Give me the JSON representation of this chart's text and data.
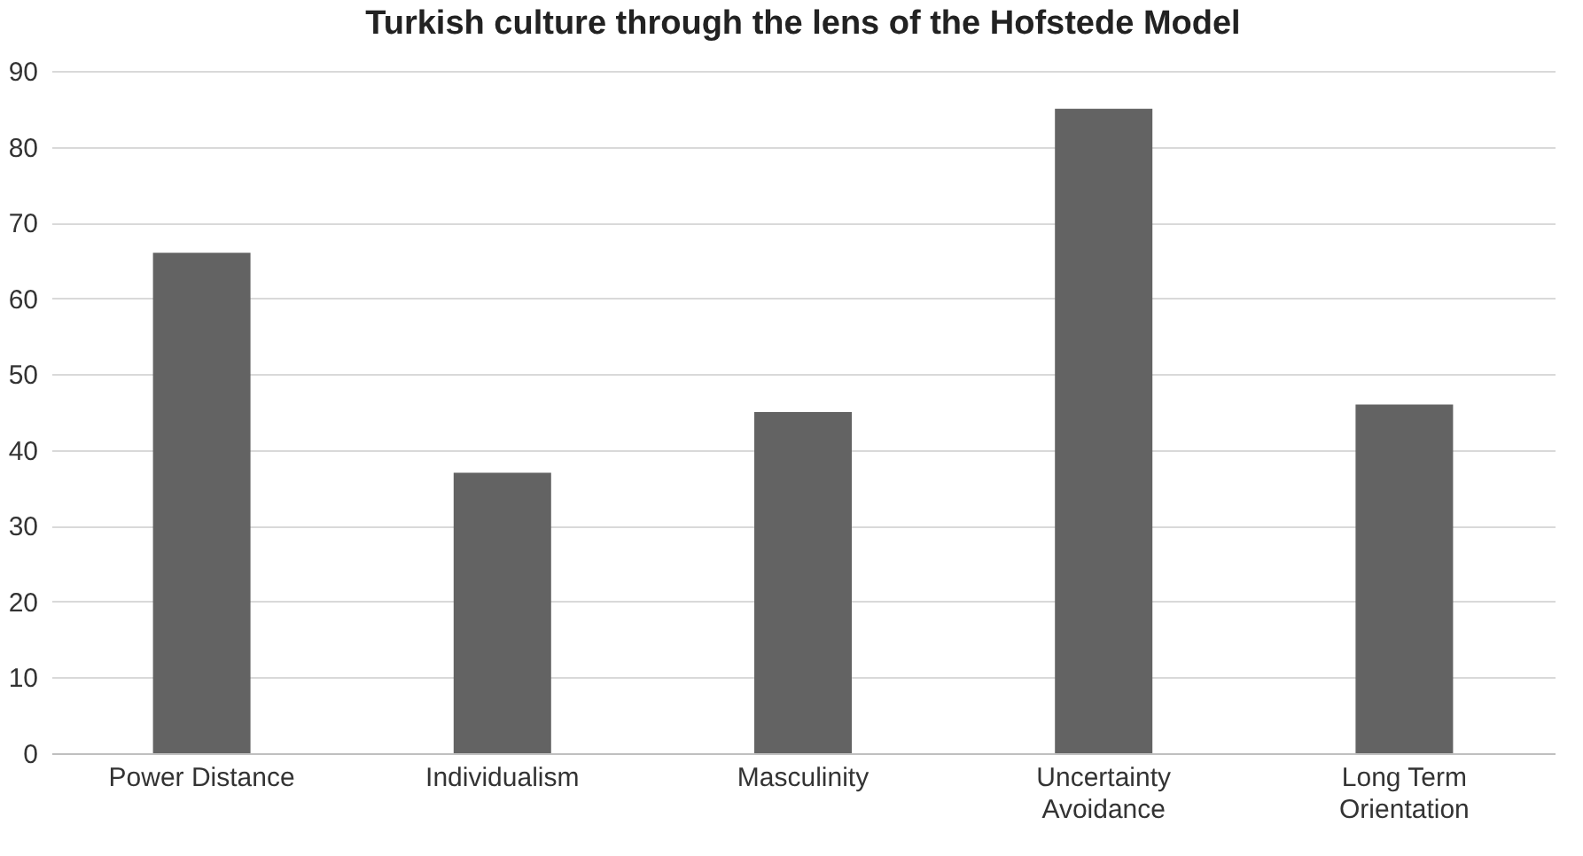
{
  "chart_data": {
    "type": "bar",
    "title": "Turkish culture through the lens of the Hofstede Model",
    "categories": [
      "Power Distance",
      "Individualism",
      "Masculinity",
      "Uncertainty Avoidance",
      "Long Term Orientation"
    ],
    "values": [
      66,
      37,
      45,
      85,
      46
    ],
    "color": "#636363",
    "ylim": [
      0,
      90
    ],
    "yticks": [
      0,
      10,
      20,
      30,
      40,
      50,
      60,
      70,
      80,
      90
    ],
    "grid": "y"
  }
}
